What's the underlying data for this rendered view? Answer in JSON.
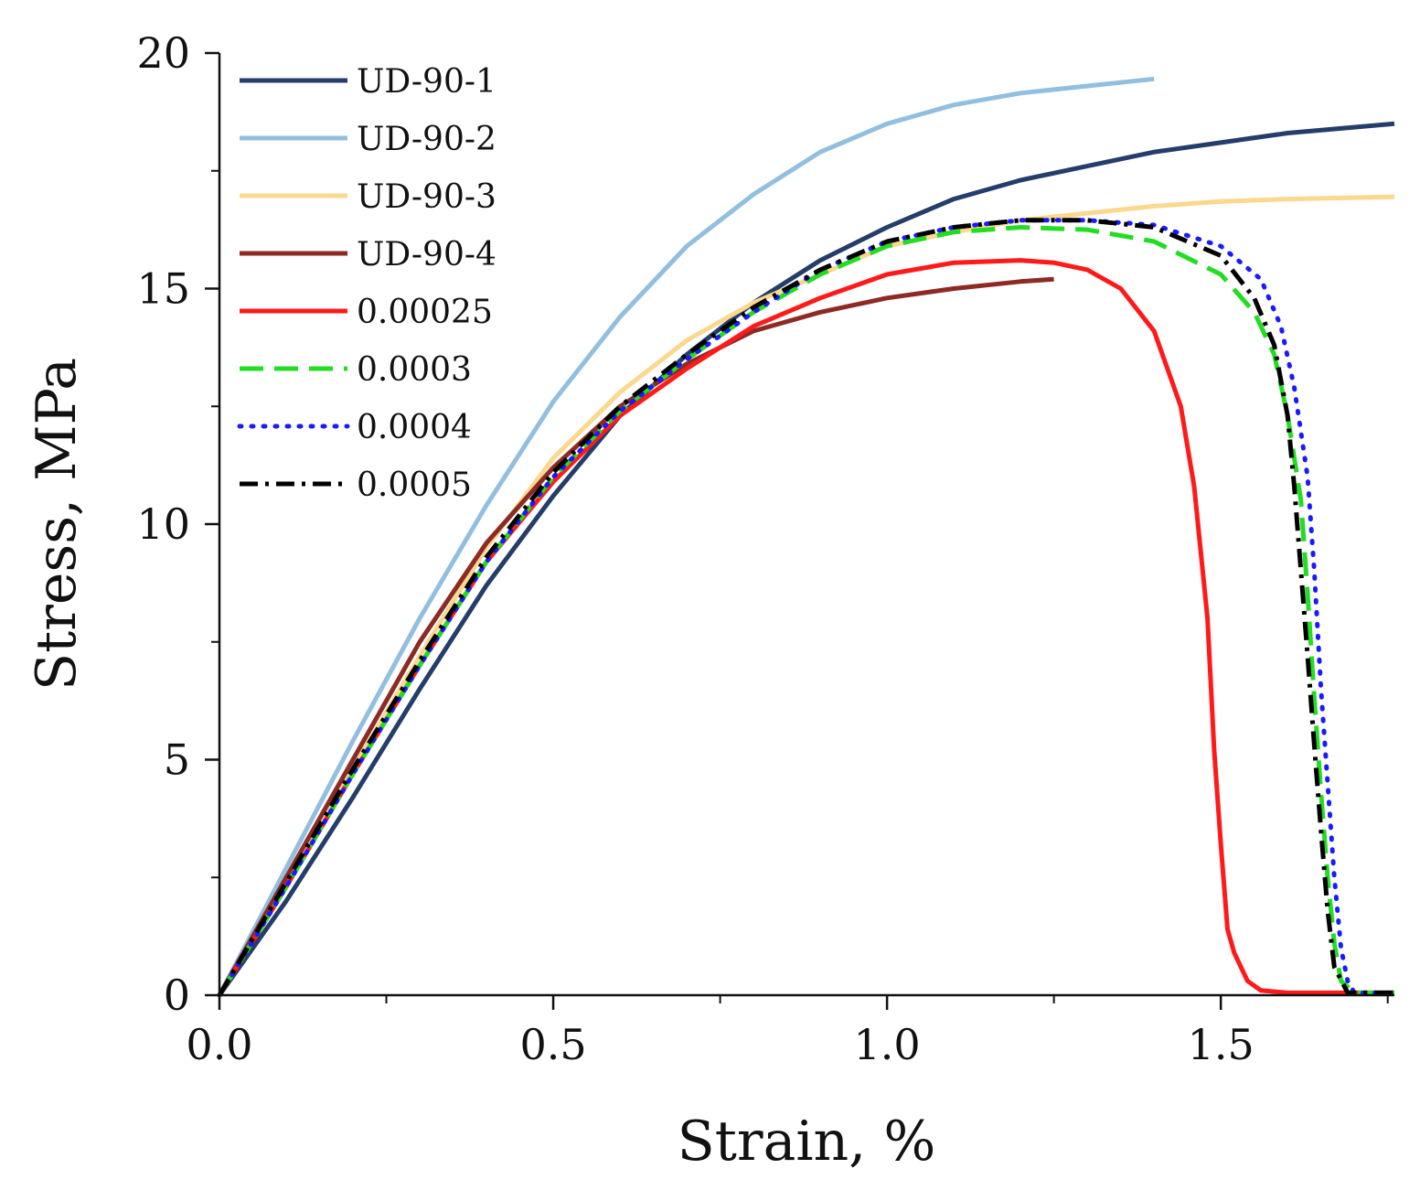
{
  "chart_data": {
    "type": "line",
    "title": "",
    "xlabel": "Strain, %",
    "ylabel": "Stress, MPa",
    "xlim": [
      0,
      1.76
    ],
    "ylim": [
      0,
      20
    ],
    "x_ticks": [
      0.0,
      0.5,
      1.0,
      1.5
    ],
    "x_tick_labels": [
      "0.0",
      "0.5",
      "1.0",
      "1.5"
    ],
    "y_ticks": [
      0,
      5,
      10,
      15,
      20
    ],
    "y_tick_labels": [
      "0",
      "5",
      "10",
      "15",
      "20"
    ],
    "grid": false,
    "legend_position": "top-left",
    "series": [
      {
        "name": "UD-90-1",
        "color": "#253d6a",
        "dash": "solid",
        "x": [
          0,
          0.1,
          0.2,
          0.3,
          0.4,
          0.5,
          0.6,
          0.7,
          0.8,
          0.9,
          1.0,
          1.1,
          1.2,
          1.3,
          1.4,
          1.5,
          1.6,
          1.76
        ],
        "y": [
          0,
          2.0,
          4.2,
          6.5,
          8.7,
          10.6,
          12.3,
          13.6,
          14.7,
          15.6,
          16.3,
          16.9,
          17.3,
          17.6,
          17.9,
          18.1,
          18.3,
          18.5
        ]
      },
      {
        "name": "UD-90-2",
        "color": "#92bfe0",
        "dash": "solid",
        "x": [
          0,
          0.1,
          0.2,
          0.3,
          0.4,
          0.5,
          0.6,
          0.7,
          0.8,
          0.9,
          1.0,
          1.1,
          1.2,
          1.3,
          1.4
        ],
        "y": [
          0,
          2.7,
          5.4,
          8.0,
          10.4,
          12.6,
          14.4,
          15.9,
          17.0,
          17.9,
          18.5,
          18.9,
          19.15,
          19.3,
          19.45
        ]
      },
      {
        "name": "UD-90-3",
        "color": "#fad88e",
        "dash": "solid",
        "x": [
          0,
          0.1,
          0.2,
          0.3,
          0.4,
          0.5,
          0.6,
          0.7,
          0.8,
          0.9,
          1.0,
          1.1,
          1.2,
          1.3,
          1.4,
          1.5,
          1.6,
          1.76
        ],
        "y": [
          0,
          2.4,
          4.8,
          7.2,
          9.5,
          11.4,
          12.8,
          13.9,
          14.7,
          15.3,
          15.9,
          16.2,
          16.45,
          16.6,
          16.75,
          16.85,
          16.9,
          16.95
        ]
      },
      {
        "name": "UD-90-4",
        "color": "#8e2a24",
        "dash": "solid",
        "x": [
          0,
          0.1,
          0.2,
          0.3,
          0.4,
          0.5,
          0.6,
          0.7,
          0.8,
          0.9,
          1.0,
          1.1,
          1.2,
          1.25
        ],
        "y": [
          0,
          2.5,
          5.0,
          7.5,
          9.6,
          11.2,
          12.5,
          13.4,
          14.1,
          14.5,
          14.8,
          15.0,
          15.15,
          15.2
        ]
      },
      {
        "name": "0.00025",
        "color": "#ff1a1a",
        "dash": "solid",
        "x": [
          0,
          0.1,
          0.2,
          0.3,
          0.4,
          0.5,
          0.6,
          0.7,
          0.8,
          0.9,
          1.0,
          1.1,
          1.2,
          1.25,
          1.3,
          1.35,
          1.4,
          1.44,
          1.46,
          1.48,
          1.49,
          1.5,
          1.51,
          1.52,
          1.54,
          1.56,
          1.6,
          1.76
        ],
        "y": [
          0,
          2.3,
          4.7,
          7.0,
          9.2,
          10.9,
          12.3,
          13.3,
          14.2,
          14.8,
          15.3,
          15.55,
          15.6,
          15.55,
          15.4,
          15.0,
          14.1,
          12.5,
          10.8,
          8.0,
          5.2,
          3.2,
          1.4,
          0.9,
          0.3,
          0.1,
          0.05,
          0.05
        ]
      },
      {
        "name": "0.0003",
        "color": "#22dd22",
        "dash": "dashed",
        "x": [
          0,
          0.1,
          0.2,
          0.3,
          0.4,
          0.5,
          0.6,
          0.7,
          0.8,
          0.9,
          1.0,
          1.1,
          1.2,
          1.3,
          1.4,
          1.5,
          1.55,
          1.58,
          1.6,
          1.62,
          1.63,
          1.64,
          1.65,
          1.66,
          1.67,
          1.68,
          1.7,
          1.76
        ],
        "y": [
          0,
          2.3,
          4.7,
          7.0,
          9.2,
          11.0,
          12.4,
          13.5,
          14.5,
          15.3,
          15.9,
          16.2,
          16.3,
          16.25,
          16.0,
          15.3,
          14.5,
          13.6,
          12.3,
          10.5,
          8.5,
          6.3,
          4.3,
          2.5,
          1.1,
          0.3,
          0.05,
          0.05
        ]
      },
      {
        "name": "0.0004",
        "color": "#1a1aff",
        "dash": "dotted",
        "x": [
          0,
          0.1,
          0.2,
          0.3,
          0.4,
          0.5,
          0.6,
          0.7,
          0.8,
          0.9,
          1.0,
          1.1,
          1.2,
          1.3,
          1.4,
          1.5,
          1.56,
          1.59,
          1.61,
          1.63,
          1.64,
          1.65,
          1.66,
          1.67,
          1.68,
          1.69,
          1.7,
          1.76
        ],
        "y": [
          0,
          2.3,
          4.7,
          7.0,
          9.2,
          11.0,
          12.4,
          13.5,
          14.5,
          15.4,
          16.0,
          16.3,
          16.45,
          16.45,
          16.35,
          15.9,
          15.2,
          14.2,
          12.9,
          11.0,
          9.0,
          6.5,
          4.5,
          2.5,
          1.0,
          0.3,
          0.05,
          0.05
        ]
      },
      {
        "name": "0.0005",
        "color": "#000000",
        "dash": "dash-dot",
        "x": [
          0,
          0.1,
          0.2,
          0.3,
          0.4,
          0.5,
          0.6,
          0.7,
          0.8,
          0.9,
          1.0,
          1.1,
          1.2,
          1.3,
          1.4,
          1.5,
          1.55,
          1.58,
          1.6,
          1.61,
          1.62,
          1.63,
          1.64,
          1.65,
          1.66,
          1.67,
          1.69,
          1.76
        ],
        "y": [
          0,
          2.4,
          4.8,
          7.1,
          9.3,
          11.1,
          12.5,
          13.6,
          14.6,
          15.4,
          16.0,
          16.3,
          16.45,
          16.45,
          16.3,
          15.7,
          14.8,
          13.8,
          12.3,
          10.8,
          9.0,
          7.2,
          5.3,
          3.5,
          1.8,
          0.6,
          0.05,
          0.05
        ]
      }
    ]
  }
}
